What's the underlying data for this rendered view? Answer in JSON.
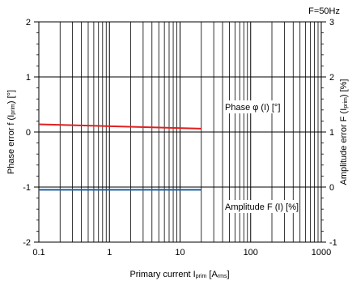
{
  "chart_data": {
    "type": "line",
    "title": "F=50Hz",
    "x_scale": "log",
    "xlim": [
      0.1,
      1000
    ],
    "x_tick_labels": [
      "0.1",
      "1",
      "10",
      "100",
      "1000"
    ],
    "xlabel": {
      "main": "Primary current I",
      "sub": "prim",
      "unit_open": " [A",
      "unit_sub": "rms",
      "unit_close": "]"
    },
    "ylim_left": [
      -2,
      2
    ],
    "y_left_ticks": [
      "2",
      "1",
      "0",
      "-1",
      "-2"
    ],
    "ylabel_left": {
      "main": "Phase error f (I",
      "sub": "prim",
      "close": ") [°]"
    },
    "ylim_right": [
      -1,
      3
    ],
    "y_right_ticks": [
      "3",
      "2",
      "1",
      "0",
      "-1"
    ],
    "ylabel_right": {
      "main": "Amplitude error F (I",
      "sub": "prim",
      "close": ") [%]"
    },
    "grid": true,
    "series": [
      {
        "name": "Phase φ (I) [°]",
        "axis": "left",
        "color": "#e02020",
        "x": [
          0.1,
          20
        ],
        "y": [
          0.14,
          0.06
        ]
      },
      {
        "name": "Amplitude F (I) [%]",
        "axis": "left",
        "color": "#1a5fa0",
        "x": [
          0.1,
          20
        ],
        "y": [
          -1.05,
          -1.05
        ]
      }
    ]
  }
}
